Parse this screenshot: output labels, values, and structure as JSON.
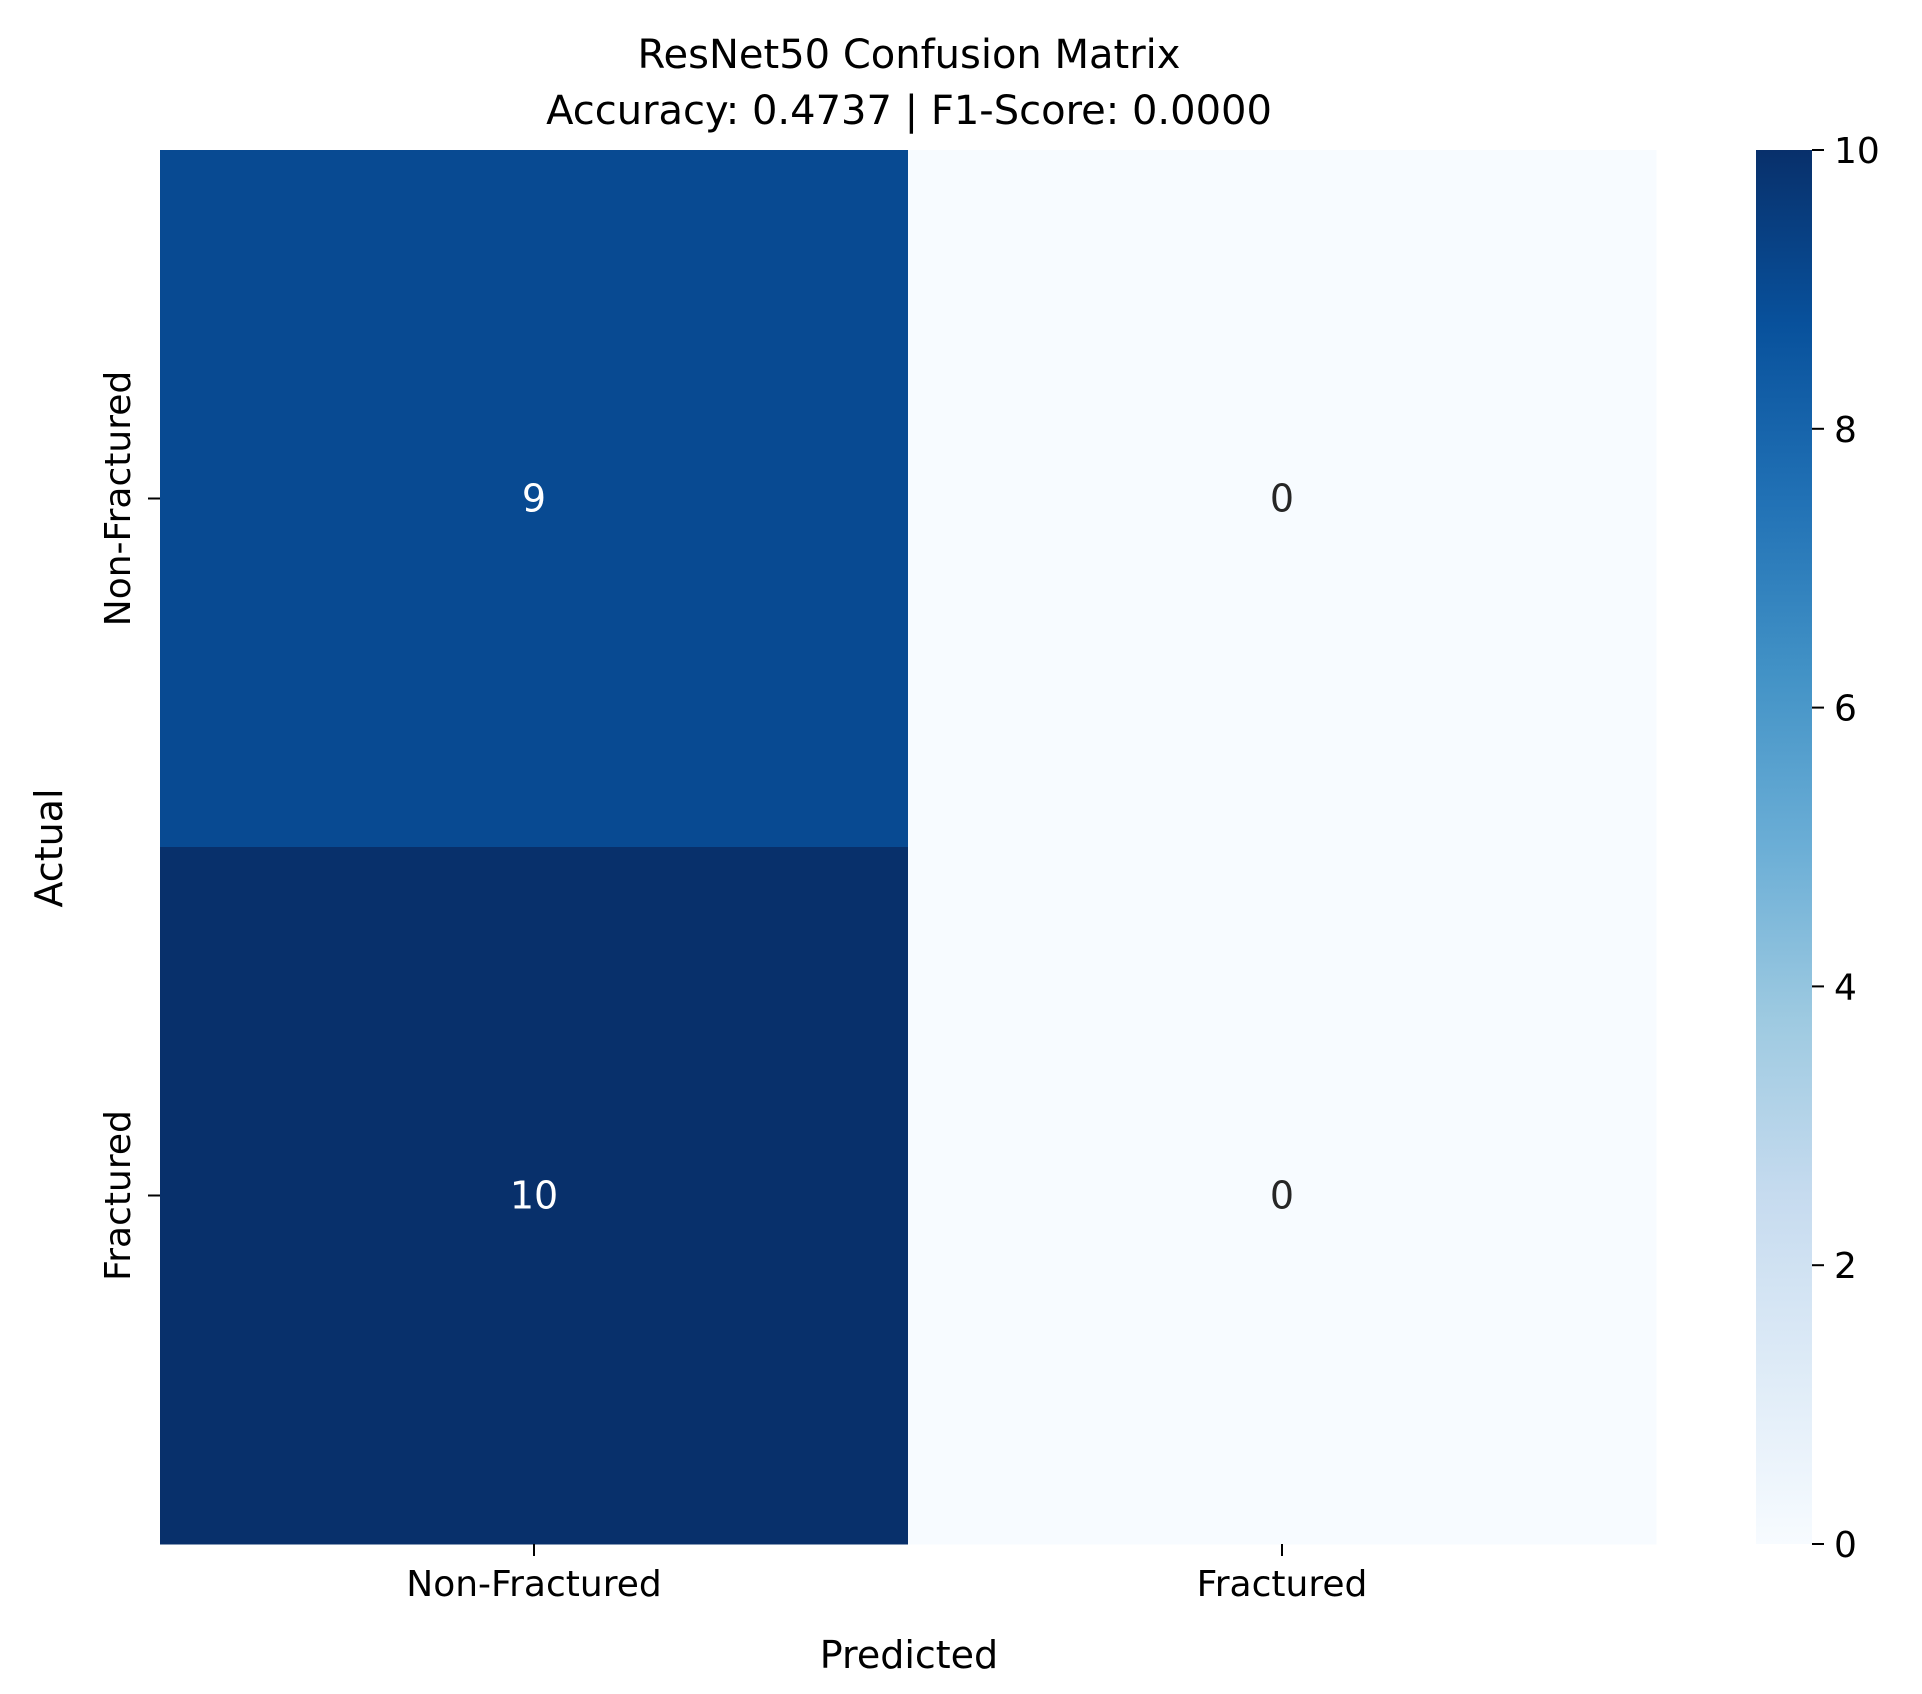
{
  "chart_data": {
    "type": "heatmap",
    "title_lines": [
      "ResNet50 Confusion Matrix",
      "Accuracy: 0.4737 | F1-Score: 0.0000"
    ],
    "xlabel": "Predicted",
    "ylabel": "Actual",
    "x_categories": [
      "Non-Fractured",
      "Fractured"
    ],
    "y_categories": [
      "Non-Fractured",
      "Fractured"
    ],
    "matrix": [
      [
        9,
        0
      ],
      [
        10,
        0
      ]
    ],
    "colormap": "Blues",
    "colorbar": {
      "min": 0,
      "max": 10,
      "ticks": [
        0,
        2,
        4,
        6,
        8,
        10
      ]
    },
    "annotation_colors": {
      "on_dark": "#ffffff",
      "on_light": "#262626"
    },
    "cell_colors": {
      "zero": "#f7fbff",
      "nine": "#084a90",
      "ten": "#08306b"
    }
  }
}
